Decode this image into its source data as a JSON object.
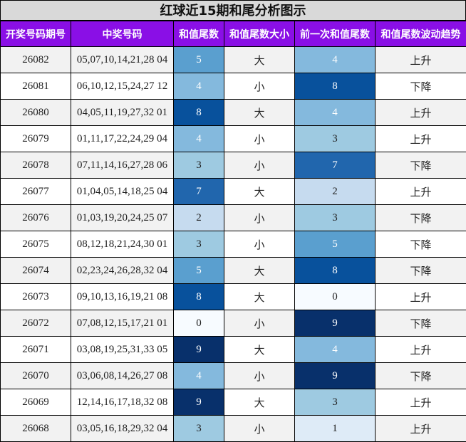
{
  "title": "红球近15期和尾分析图示",
  "headers": [
    "开奖号码期号",
    "中奖号码",
    "和值尾数",
    "和值尾数大小",
    "前一次和值尾数",
    "和值尾数波动趋势"
  ],
  "colors": {
    "header_bg": "#8a0fe6",
    "title_bg": "#d9d9d9",
    "scale": {
      "0": "#f7fbff",
      "1": "#deebf7",
      "2": "#c6dbef",
      "3": "#9ecae1",
      "4": "#84b9dd",
      "5": "#5a9fcf",
      "7": "#2166ad",
      "8": "#08519c",
      "9": "#08306b"
    }
  },
  "rows": [
    {
      "period": "26082",
      "numbers": "05,07,10,14,21,28 04",
      "tail": "5",
      "size": "大",
      "prev": "4",
      "trend": "上升"
    },
    {
      "period": "26081",
      "numbers": "06,10,12,15,24,27 12",
      "tail": "4",
      "size": "小",
      "prev": "8",
      "trend": "下降"
    },
    {
      "period": "26080",
      "numbers": "04,05,11,19,27,32 01",
      "tail": "8",
      "size": "大",
      "prev": "4",
      "trend": "上升"
    },
    {
      "period": "26079",
      "numbers": "01,11,17,22,24,29 04",
      "tail": "4",
      "size": "小",
      "prev": "3",
      "trend": "上升"
    },
    {
      "period": "26078",
      "numbers": "07,11,14,16,27,28 06",
      "tail": "3",
      "size": "小",
      "prev": "7",
      "trend": "下降"
    },
    {
      "period": "26077",
      "numbers": "01,04,05,14,18,25 04",
      "tail": "7",
      "size": "大",
      "prev": "2",
      "trend": "上升"
    },
    {
      "period": "26076",
      "numbers": "01,03,19,20,24,25 07",
      "tail": "2",
      "size": "小",
      "prev": "3",
      "trend": "下降"
    },
    {
      "period": "26075",
      "numbers": "08,12,18,21,24,30 01",
      "tail": "3",
      "size": "小",
      "prev": "5",
      "trend": "下降"
    },
    {
      "period": "26074",
      "numbers": "02,23,24,26,28,32 04",
      "tail": "5",
      "size": "大",
      "prev": "8",
      "trend": "下降"
    },
    {
      "period": "26073",
      "numbers": "09,10,13,16,19,21 08",
      "tail": "8",
      "size": "大",
      "prev": "0",
      "trend": "上升"
    },
    {
      "period": "26072",
      "numbers": "07,08,12,15,17,21 01",
      "tail": "0",
      "size": "小",
      "prev": "9",
      "trend": "下降"
    },
    {
      "period": "26071",
      "numbers": "03,08,19,25,31,33 05",
      "tail": "9",
      "size": "大",
      "prev": "4",
      "trend": "上升"
    },
    {
      "period": "26070",
      "numbers": "03,06,08,14,26,27 08",
      "tail": "4",
      "size": "小",
      "prev": "9",
      "trend": "下降"
    },
    {
      "period": "26069",
      "numbers": "12,14,16,17,18,32 08",
      "tail": "9",
      "size": "大",
      "prev": "3",
      "trend": "上升"
    },
    {
      "period": "26068",
      "numbers": "03,05,16,18,29,32 04",
      "tail": "3",
      "size": "小",
      "prev": "1",
      "trend": "上升"
    }
  ]
}
